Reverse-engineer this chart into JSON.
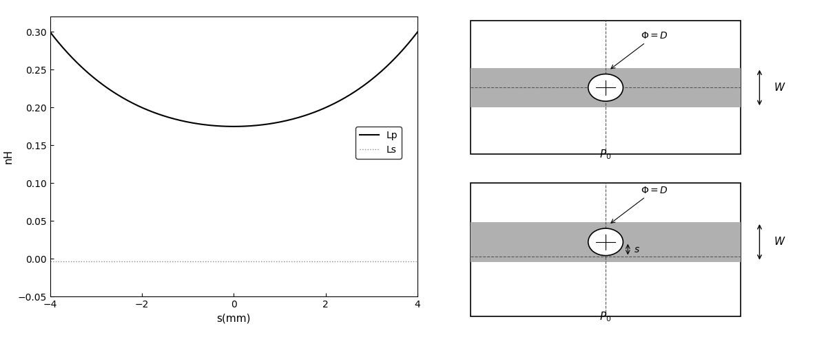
{
  "xlim": [
    -4,
    4
  ],
  "ylim": [
    -0.05,
    0.32
  ],
  "xlabel": "s(mm)",
  "ylabel": "nH",
  "xticks": [
    -4,
    -2,
    0,
    2,
    4
  ],
  "yticks": [
    -0.05,
    0,
    0.05,
    0.1,
    0.15,
    0.2,
    0.25,
    0.3
  ],
  "lp_color": "#000000",
  "ls_color": "#888888",
  "background": "#ffffff",
  "legend_lp": "Lp",
  "legend_ls": "Ls",
  "lp_a": 0.005729,
  "lp_b": 0.00013,
  "lp_min": 0.175,
  "ls_val": -0.003,
  "strip_color": "#b0b0b0",
  "dash_color": "#555555"
}
